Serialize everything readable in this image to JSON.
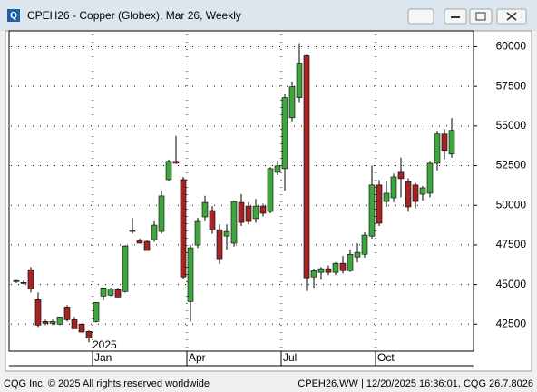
{
  "chart_data": {
    "type": "candlestick",
    "title": "CPEH26 - Copper (Globex), Mar 26, Weekly",
    "year_label": "2025",
    "footer_left": "CQG Inc. © 2025 All rights reserved worldwide",
    "footer_right": "CPEH26,WW | 12/20/2025 16:36:01, CQG 26.7.8026",
    "up_color": "#3fa63f",
    "down_color": "#a42424",
    "grid": true,
    "ylim": [
      40800,
      61000
    ],
    "yticks": [
      42500,
      45000,
      47500,
      50000,
      52500,
      55000,
      57500,
      60000
    ],
    "categories": [
      null,
      null,
      null,
      null,
      null,
      null,
      null,
      null,
      null,
      null,
      null,
      "Jan",
      null,
      null,
      null,
      null,
      null,
      null,
      null,
      null,
      null,
      null,
      null,
      null,
      "Apr",
      null,
      null,
      null,
      null,
      null,
      null,
      null,
      null,
      null,
      null,
      null,
      null,
      "Jul",
      null,
      null,
      null,
      null,
      null,
      null,
      null,
      null,
      null,
      null,
      null,
      null,
      "Oct",
      null,
      null,
      null,
      null,
      null,
      null,
      null,
      null,
      null,
      null
    ],
    "open": [
      45190,
      45130,
      45940,
      44040,
      42670,
      42550,
      42500,
      43580,
      42780,
      42500,
      42040,
      42670,
      44270,
      44330,
      44670,
      44560,
      48350,
      47780,
      47720,
      47830,
      48350,
      51620,
      52770,
      51620,
      43930,
      47490,
      49270,
      49670,
      48460,
      48060,
      47610,
      50180,
      49950,
      49160,
      49950,
      49610,
      52080,
      52310,
      55520,
      56790,
      59430,
      45480,
      45770,
      46000,
      45770,
      46340,
      45880,
      46740,
      46910,
      48060,
      51280,
      50240,
      50470,
      52080,
      51500,
      51280,
      50700,
      50760,
      52650,
      54490,
      53230
    ],
    "high": [
      45300,
      45250,
      46110,
      44500,
      42780,
      42780,
      42950,
      43700,
      42950,
      42550,
      42100,
      43870,
      44790,
      44790,
      44800,
      47490,
      49200,
      47900,
      47780,
      48980,
      50930,
      52880,
      54375,
      51790,
      47490,
      49210,
      50600,
      49950,
      48800,
      48800,
      50300,
      50700,
      50200,
      50400,
      50100,
      52400,
      52800,
      57000,
      57800,
      60230,
      59500,
      46000,
      46100,
      46200,
      46400,
      46800,
      47200,
      47600,
      48300,
      52500,
      51600,
      51500,
      52000,
      53000,
      51700,
      51400,
      51200,
      52800,
      54700,
      54800,
      55500
    ],
    "low": [
      45100,
      45000,
      44500,
      42320,
      42440,
      42440,
      42440,
      42670,
      42210,
      41980,
      41350,
      42600,
      44000,
      44270,
      44210,
      44500,
      48200,
      47600,
      47150,
      47700,
      48200,
      51500,
      52650,
      45360,
      42670,
      47300,
      49000,
      48200,
      46300,
      47200,
      47400,
      48700,
      48800,
      48900,
      49300,
      49500,
      51900,
      50930,
      55300,
      56500,
      44600,
      44800,
      45300,
      45600,
      45600,
      45700,
      45800,
      46400,
      46700,
      47900,
      48700,
      49900,
      50200,
      50500,
      49600,
      49800,
      50300,
      50500,
      52200,
      52900,
      53000
    ],
    "close": [
      45250,
      45070,
      44730,
      42440,
      42550,
      42670,
      42950,
      42780,
      42210,
      42000,
      41630,
      43870,
      44790,
      44730,
      44210,
      47430,
      48410,
      47610,
      47150,
      48750,
      50590,
      52770,
      52650,
      45480,
      47320,
      48980,
      50180,
      48460,
      46630,
      48350,
      50240,
      48920,
      48980,
      49950,
      49500,
      52310,
      52480,
      56790,
      57470,
      58970,
      45420,
      45880,
      46000,
      45770,
      46340,
      45880,
      46910,
      47030,
      48120,
      51280,
      48870,
      50760,
      51790,
      51680,
      49900,
      50240,
      51100,
      52650,
      54490,
      53460,
      54720
    ]
  }
}
